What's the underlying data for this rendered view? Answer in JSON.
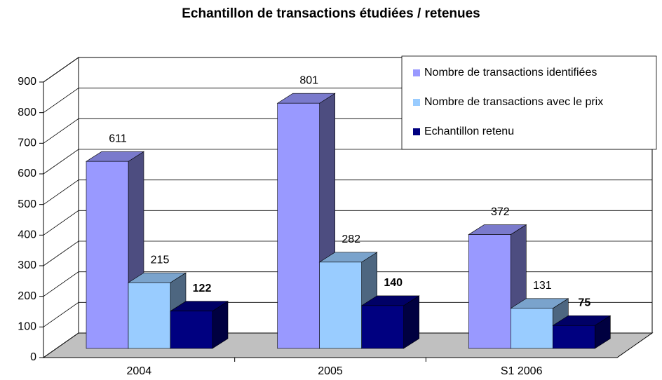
{
  "chart_data": {
    "type": "bar3d",
    "title": "Echantillon de transactions étudiées / retenues",
    "categories": [
      "2004",
      "2005",
      "S1 2006"
    ],
    "series": [
      {
        "name": "Nombre de transactions identifiées",
        "color": "#9999ff",
        "values": [
          611,
          801,
          372
        ]
      },
      {
        "name": "Nombre de transactions avec le prix",
        "color": "#99ccff",
        "values": [
          215,
          282,
          131
        ]
      },
      {
        "name": "Echantillon retenu",
        "color": "#000080",
        "values": [
          122,
          140,
          75
        ],
        "label_bold": true
      }
    ],
    "ylim": [
      0,
      900
    ],
    "yticks": [
      0,
      100,
      200,
      300,
      400,
      500,
      600,
      700,
      800,
      900
    ],
    "grid": true,
    "legend": "top-right"
  }
}
